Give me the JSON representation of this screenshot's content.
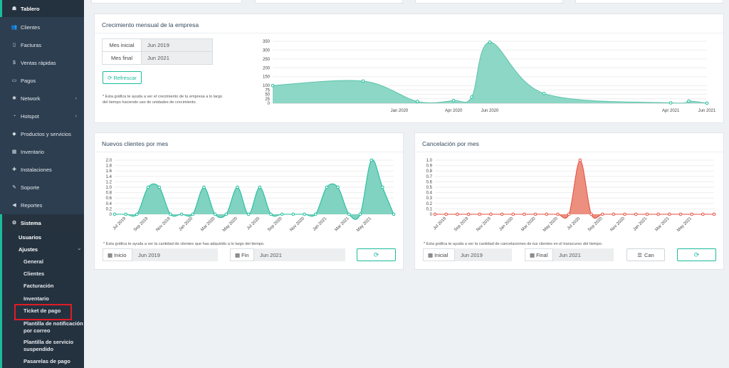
{
  "sidebar": {
    "items": [
      {
        "label": "Tablero",
        "icon": "dashboard-icon",
        "glyph": "☗"
      },
      {
        "label": "Clientes",
        "icon": "users-icon",
        "glyph": "👥"
      },
      {
        "label": "Facturas",
        "icon": "file-icon",
        "glyph": "▯"
      },
      {
        "label": "Ventas rápidas",
        "icon": "dollar-icon",
        "glyph": "$"
      },
      {
        "label": "Pagos",
        "icon": "money-icon",
        "glyph": "▭"
      },
      {
        "label": "Network",
        "icon": "network-icon",
        "glyph": "✱"
      },
      {
        "label": "Hotspot",
        "icon": "wifi-icon",
        "glyph": "◔"
      },
      {
        "label": "Productos y servicios",
        "icon": "tags-icon",
        "glyph": "◆"
      },
      {
        "label": "Inventario",
        "icon": "cubes-icon",
        "glyph": "▦"
      },
      {
        "label": "Instalaciones",
        "icon": "puzzle-icon",
        "glyph": "✚"
      },
      {
        "label": "Soporte",
        "icon": "wrench-icon",
        "glyph": "✎"
      },
      {
        "label": "Reportes",
        "icon": "share-icon",
        "glyph": "◀"
      },
      {
        "label": "Sistema",
        "icon": "cogs-icon",
        "glyph": "⚙"
      }
    ],
    "sistema_sub": {
      "usuarios": "Usuarios",
      "ajustes": "Ajustes",
      "ajustes_items": [
        "General",
        "Clientes",
        "Facturación",
        "Inventario",
        "Ticket de pago",
        "Plantilla de notificación por correo",
        "Plantilla de servicio suspendido",
        "Pasarelas de pago"
      ]
    }
  },
  "growth": {
    "title": "Crecimiento mensual de la empresa",
    "start_label": "Mes inicial",
    "start_value": "Jun 2019",
    "end_label": "Mes final",
    "end_value": "Jun 2021",
    "refresh_label": "Refrescar",
    "note": "* Esta gráfica te ayuda a ver el crecimiento de tu empresa a lo largo del tiempo haciendo uso de unidades de crecimiento."
  },
  "new_clients": {
    "title": "Nuevos clientes por mes",
    "note": "* Esta gráfica te ayuda a ver la cantidad de clientes que has adquirido a lo largo del tiempo.",
    "start_label": "Inicio",
    "start_value": "Jun 2019",
    "end_label": "Fin",
    "end_value": "Jun 2021"
  },
  "cancel": {
    "title": "Cancelación por mes",
    "note": "* Esta gráfica te ayuda a ver la cantidad de cancelaciones de tus clientes en el transcurso del tiempo.",
    "start_label": "Inicial",
    "start_value": "Jun 2019",
    "end_label": "Final",
    "end_value": "Jun 2021",
    "can_label": "Can"
  },
  "colors": {
    "teal": "#1abc9c",
    "fill": "#7fd3c0",
    "red": "#e74c3c",
    "redfill": "#ec8f7e"
  },
  "chart_data": [
    {
      "type": "area",
      "title": "",
      "x_ticks": [
        "Jan 2020",
        "Apr 2020",
        "Jun 2020",
        "Apr 2021",
        "Jun 2021"
      ],
      "points": [
        {
          "x": "Jun 2019",
          "y": 100
        },
        {
          "x": "Nov 2019",
          "y": 125
        },
        {
          "x": "Feb 2020",
          "y": 10
        },
        {
          "x": "Apr 2020",
          "y": 15
        },
        {
          "x": "May 2020",
          "y": 35
        },
        {
          "x": "Jun 2020",
          "y": 345
        },
        {
          "x": "Sep 2020",
          "y": 55
        },
        {
          "x": "Apr 2021",
          "y": 2
        },
        {
          "x": "May 2021",
          "y": 12
        },
        {
          "x": "Jun 2021",
          "y": 0
        }
      ],
      "y_ticks": [
        0,
        25,
        50,
        75,
        100,
        150,
        200,
        250,
        300,
        350
      ],
      "ylim": [
        0,
        350
      ]
    },
    {
      "type": "area",
      "title": "",
      "x_ticks": [
        "Jul 2019",
        "Sep 2019",
        "Nov 2019",
        "Jan 2020",
        "Mar 2020",
        "May 2020",
        "Jul 2020",
        "Sep 2020",
        "Nov 2020",
        "Jan 2021",
        "Mar 2021",
        "May 2021"
      ],
      "values": [
        0,
        0,
        0,
        1,
        1,
        0,
        0,
        0,
        1,
        0,
        0,
        1,
        0,
        1,
        0,
        0,
        0,
        0,
        0,
        1,
        1,
        0,
        0,
        2,
        1,
        0
      ],
      "y_ticks": [
        0,
        0.2,
        0.4,
        0.6,
        0.8,
        1.0,
        1.2,
        1.4,
        1.6,
        1.8,
        2.0
      ],
      "ylim": [
        0,
        2.0
      ]
    },
    {
      "type": "area",
      "title": "",
      "x_ticks": [
        "Jul 2019",
        "Sep 2019",
        "Nov 2019",
        "Jan 2020",
        "Mar 2020",
        "May 2020",
        "Jul 2020",
        "Sep 2020",
        "Nov 2020",
        "Jan 2021",
        "Mar 2021",
        "May 2021"
      ],
      "values": [
        0,
        0,
        0,
        0,
        0,
        0,
        0,
        0,
        0,
        0,
        0,
        0,
        0,
        1,
        0,
        0,
        0,
        0,
        0,
        0,
        0,
        0,
        0,
        0,
        0,
        0
      ],
      "y_ticks": [
        0,
        0.1,
        0.2,
        0.3,
        0.4,
        0.5,
        0.6,
        0.7,
        0.8,
        0.9,
        1.0
      ],
      "ylim": [
        0,
        1.0
      ]
    }
  ]
}
